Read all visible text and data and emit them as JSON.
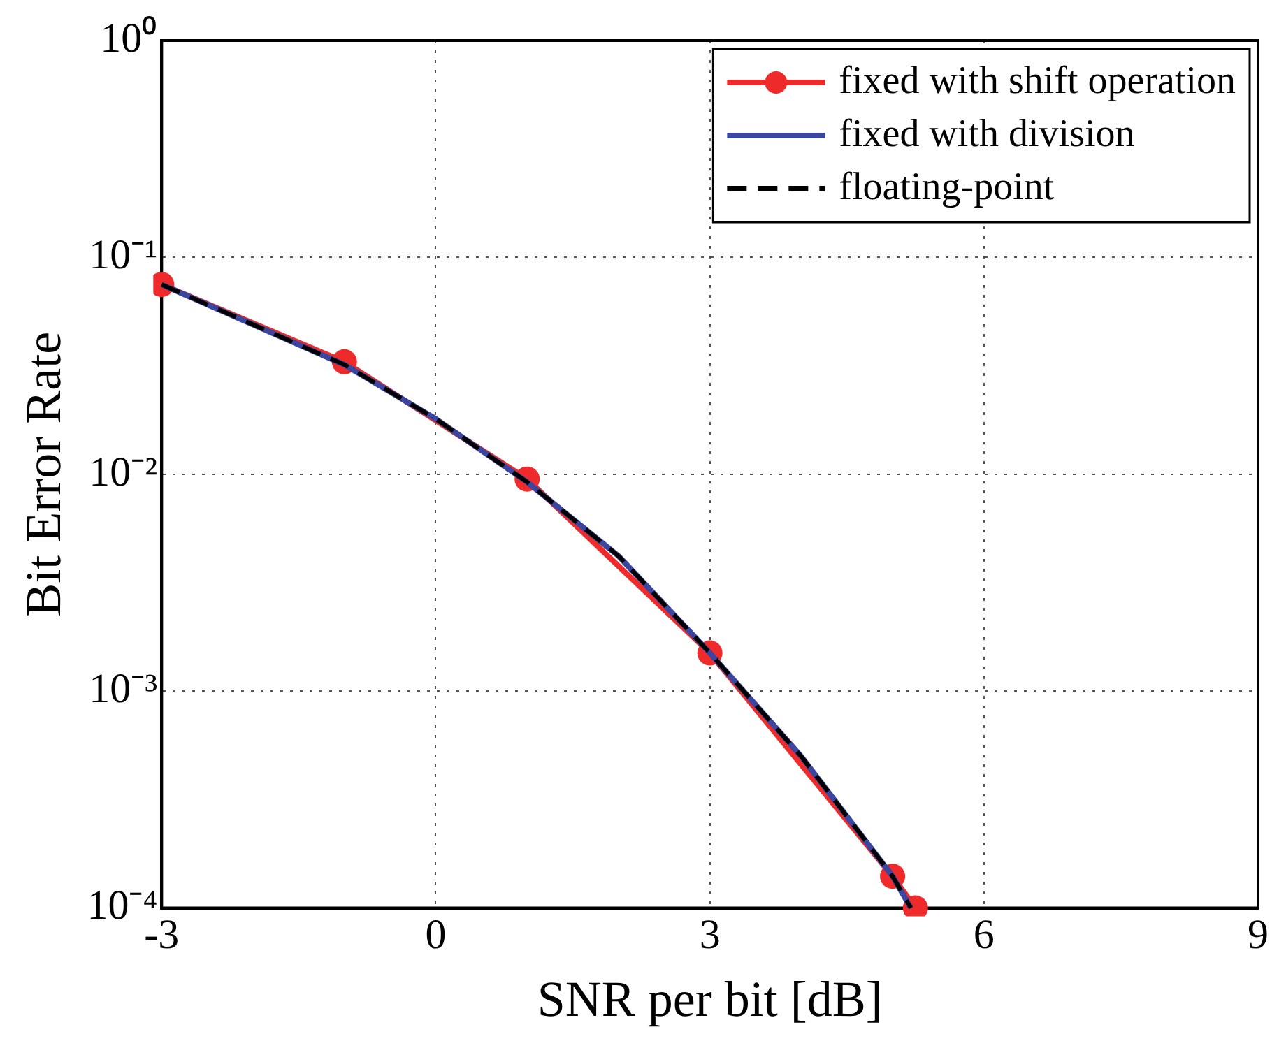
{
  "chart_data": {
    "type": "line",
    "xlabel": "SNR per bit [dB]",
    "ylabel": "Bit Error Rate",
    "xlim": [
      -3,
      9
    ],
    "xticks": [
      -3,
      0,
      3,
      6,
      9
    ],
    "ylim": [
      0.0001,
      1
    ],
    "yticks": [
      {
        "value": 0.0001,
        "label": "10⁻⁴"
      },
      {
        "value": 0.001,
        "label": "10⁻³"
      },
      {
        "value": 0.01,
        "label": "10⁻²"
      },
      {
        "value": 0.1,
        "label": "10⁻¹"
      },
      {
        "value": 1,
        "label": "10⁰"
      }
    ],
    "log": "y",
    "grid": true,
    "legend": "top right",
    "line_style": "solid",
    "series": [
      {
        "name": "fixed with shift operation",
        "color": "#ee2a2a",
        "marker": "circle",
        "x": [
          -3,
          -1,
          1,
          3,
          5,
          5.25
        ],
        "values": [
          0.075,
          0.033,
          0.0095,
          0.0015,
          0.00014,
          0.0001
        ]
      },
      {
        "name": "fixed with division",
        "color": "#3a46a0",
        "marker": "none",
        "x": [
          -3,
          -1,
          0,
          1,
          2,
          3,
          4,
          5,
          5.2
        ],
        "values": [
          0.075,
          0.032,
          0.018,
          0.0092,
          0.0042,
          0.0015,
          0.0005,
          0.00014,
          0.0001
        ]
      },
      {
        "name": "floating-point",
        "color": "#000000",
        "marker": "none",
        "line_style": "dashed",
        "x": [
          -3,
          -1,
          0,
          1,
          2,
          3,
          4,
          5,
          5.2
        ],
        "values": [
          0.075,
          0.032,
          0.018,
          0.0092,
          0.0042,
          0.0015,
          0.0005,
          0.00014,
          0.0001
        ]
      }
    ]
  }
}
